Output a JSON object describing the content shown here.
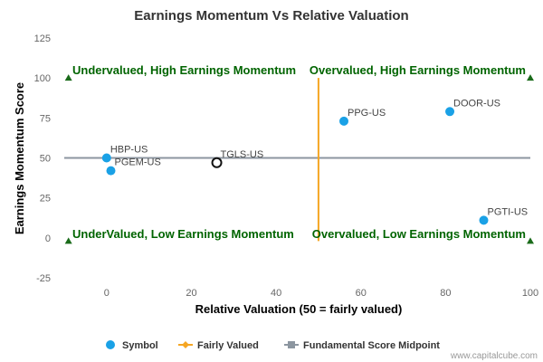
{
  "chart_data": {
    "type": "scatter",
    "title": "Earnings Momentum Vs Relative Valuation",
    "xlabel": "Relative Valuation (50 = fairly valued)",
    "ylabel": "Earnings Momentum Score",
    "xlim": [
      -10,
      100
    ],
    "ylim": [
      -25,
      125
    ],
    "xticks": [
      "0",
      "20",
      "40",
      "60",
      "80",
      "100"
    ],
    "yticks": [
      "-25",
      "0",
      "25",
      "50",
      "75",
      "100",
      "125"
    ],
    "points": [
      {
        "label": "HBP-US",
        "x": 0,
        "y": 50
      },
      {
        "label": "PGEM-US",
        "x": 1,
        "y": 42
      },
      {
        "label": "TGLS-US",
        "x": 26,
        "y": 47,
        "highlight": true
      },
      {
        "label": "PPG-US",
        "x": 56,
        "y": 73
      },
      {
        "label": "DOOR-US",
        "x": 81,
        "y": 79
      },
      {
        "label": "PGTI-US",
        "x": 89,
        "y": 11
      }
    ],
    "fairly_valued_x": 50,
    "midpoint_y": 50,
    "quadrant_markers": [
      {
        "x": -9,
        "y": 100
      },
      {
        "x": 100,
        "y": 100
      },
      {
        "x": -9,
        "y": -2
      },
      {
        "x": 100,
        "y": -2
      }
    ],
    "quadrant_labels": {
      "top_left": "Undervalued, High Earnings Momentum",
      "top_right": "Overvalued, High Earnings Momentum",
      "bottom_left": "UnderValued, Low Earnings Momentum",
      "bottom_right": "Overvalued, Low Earnings Momentum"
    },
    "legend": [
      {
        "name": "Symbol",
        "symbol": "circle",
        "color": "#1aa1e6"
      },
      {
        "name": "Fairly Valued",
        "symbol": "diamond-line",
        "color": "#f5a623"
      },
      {
        "name": "Fundamental Score Midpoint",
        "symbol": "square-line",
        "color": "#8c96a0"
      }
    ]
  },
  "colors": {
    "point": "#1aa1e6",
    "fairly_valued_line": "#f5a623",
    "midpoint_line": "#8c96a0",
    "quadrant_text": "#006400",
    "marker": "#1a6b1a"
  },
  "credit": "www.capitalcube.com"
}
